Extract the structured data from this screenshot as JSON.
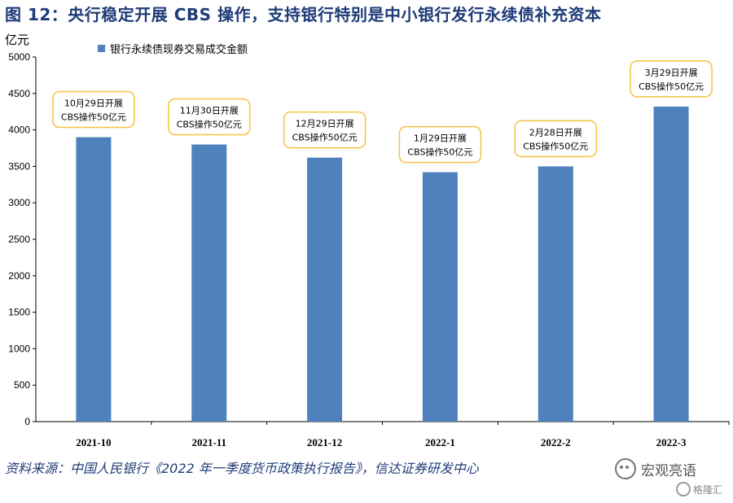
{
  "figure": {
    "title": "图 12：央行稳定开展 CBS 操作，支持银行特别是中小银行发行永续债补充资本",
    "unit": "亿元",
    "source": "资料来源：中国人民银行《2022 年一季度货币政策执行报告》，信达证券研发中心",
    "watermark": "宏观亮语",
    "watermark2": "格隆汇"
  },
  "colors": {
    "bar": "#4f81bd",
    "title": "#1f3c78",
    "callout_border": "#f5c342"
  },
  "chart_data": {
    "type": "bar",
    "categories": [
      "2021-10",
      "2021-11",
      "2021-12",
      "2022-1",
      "2022-2",
      "2022-3"
    ],
    "series": [
      {
        "name": "银行永续债现券交易成交金额",
        "values": [
          3900,
          3800,
          3620,
          3420,
          3500,
          4320
        ]
      }
    ],
    "ylim": [
      0,
      5000
    ],
    "yticks": [
      0,
      500,
      1000,
      1500,
      2000,
      2500,
      3000,
      3500,
      4000,
      4500,
      5000
    ],
    "legend_position": "top-left",
    "grid": false,
    "annotations": [
      {
        "category": "2021-10",
        "line1": "10月29日开展",
        "line2": "CBS操作50亿元"
      },
      {
        "category": "2021-11",
        "line1": "11月30日开展",
        "line2": "CBS操作50亿元"
      },
      {
        "category": "2021-12",
        "line1": "12月29日开展",
        "line2": "CBS操作50亿元"
      },
      {
        "category": "2022-1",
        "line1": "1月29日开展",
        "line2": "CBS操作50亿元"
      },
      {
        "category": "2022-2",
        "line1": "2月28日开展",
        "line2": "CBS操作50亿元"
      },
      {
        "category": "2022-3",
        "line1": "3月29日开展",
        "line2": "CBS操作50亿元"
      }
    ]
  }
}
